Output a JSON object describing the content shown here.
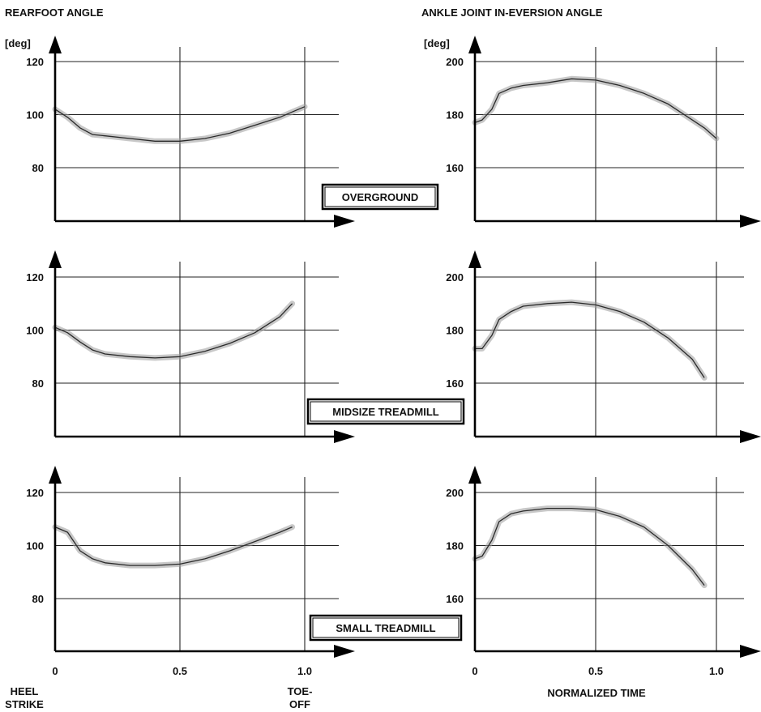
{
  "figure": {
    "left_title": "REARFOOT ANGLE",
    "right_title": "ANKLE JOINT IN-EVERSION ANGLE",
    "unit": "[deg]",
    "conditions": [
      "OVERGROUND",
      "MIDSIZE TREADMILL",
      "SMALL TREADMILL"
    ],
    "footer": {
      "heel_1": "HEEL",
      "heel_2": "STRIKE",
      "toe_1": "TOE-",
      "toe_2": "OFF",
      "normalized_time": "NORMALIZED TIME"
    }
  },
  "chart_data": [
    {
      "type": "line",
      "title": "REARFOOT ANGLE",
      "condition": "OVERGROUND",
      "ylabel": "[deg]",
      "ylim": [
        62,
        122
      ],
      "xlim": [
        0,
        1.05
      ],
      "y_ticks": [
        "120",
        "100",
        "80"
      ],
      "x_ticks": [],
      "grid": true,
      "x": [
        0,
        0.05,
        0.1,
        0.15,
        0.2,
        0.3,
        0.4,
        0.5,
        0.6,
        0.7,
        0.8,
        0.9,
        0.95,
        1.0
      ],
      "values": [
        102,
        99,
        95,
        92.5,
        92,
        91,
        90,
        90,
        91,
        93,
        96,
        99,
        101,
        103
      ]
    },
    {
      "type": "line",
      "title": "ANKLE JOINT IN-EVERSION ANGLE",
      "condition": "OVERGROUND",
      "ylabel": "[deg]",
      "ylim": [
        140,
        200
      ],
      "xlim": [
        0,
        1.1
      ],
      "y_ticks": [
        "200",
        "180",
        "160"
      ],
      "x_ticks": [],
      "grid": true,
      "x": [
        0,
        0.03,
        0.07,
        0.1,
        0.15,
        0.2,
        0.3,
        0.4,
        0.5,
        0.6,
        0.7,
        0.8,
        0.9,
        0.95,
        1.0
      ],
      "values": [
        177,
        178,
        182,
        188,
        190,
        191,
        192,
        193.5,
        193,
        191,
        188,
        184,
        178,
        175,
        171
      ]
    },
    {
      "type": "line",
      "title": "REARFOOT ANGLE",
      "condition": "MIDSIZE TREADMILL",
      "ylabel": "",
      "ylim": [
        62,
        122
      ],
      "xlim": [
        0,
        1.05
      ],
      "y_ticks": [
        "120",
        "100",
        "80"
      ],
      "x_ticks": [],
      "grid": true,
      "x": [
        0,
        0.05,
        0.1,
        0.15,
        0.2,
        0.3,
        0.4,
        0.5,
        0.6,
        0.7,
        0.8,
        0.9,
        0.95
      ],
      "values": [
        101,
        99,
        95.5,
        92.5,
        91,
        90,
        89.5,
        90,
        92,
        95,
        99,
        105,
        110
      ]
    },
    {
      "type": "line",
      "title": "ANKLE JOINT IN-EVERSION ANGLE",
      "condition": "MIDSIZE TREADMILL",
      "ylabel": "",
      "ylim": [
        140,
        200
      ],
      "xlim": [
        0,
        1.1
      ],
      "y_ticks": [
        "200",
        "180",
        "160"
      ],
      "x_ticks": [],
      "grid": true,
      "x": [
        0,
        0.03,
        0.07,
        0.1,
        0.15,
        0.2,
        0.3,
        0.4,
        0.5,
        0.6,
        0.7,
        0.8,
        0.9,
        0.95
      ],
      "values": [
        173,
        173,
        178,
        184,
        187,
        189,
        190,
        190.5,
        189.5,
        187,
        183,
        177,
        169,
        162
      ]
    },
    {
      "type": "line",
      "title": "REARFOOT ANGLE",
      "condition": "SMALL TREADMILL",
      "ylabel": "",
      "ylim": [
        62,
        122
      ],
      "xlim": [
        0,
        1.05
      ],
      "y_ticks": [
        "120",
        "100",
        "80"
      ],
      "x_ticks": [
        "0",
        "0.5",
        "1.0"
      ],
      "grid": true,
      "x": [
        0,
        0.05,
        0.1,
        0.15,
        0.2,
        0.3,
        0.4,
        0.5,
        0.6,
        0.7,
        0.8,
        0.9,
        0.95
      ],
      "values": [
        107,
        105,
        98,
        95,
        93.5,
        92.5,
        92.5,
        93,
        95,
        98,
        101.5,
        105,
        107
      ]
    },
    {
      "type": "line",
      "title": "ANKLE JOINT IN-EVERSION ANGLE",
      "condition": "SMALL TREADMILL",
      "ylabel": "",
      "ylim": [
        140,
        200
      ],
      "xlim": [
        0,
        1.1
      ],
      "y_ticks": [
        "200",
        "180",
        "160"
      ],
      "x_ticks": [
        "0",
        "0.5",
        "1.0"
      ],
      "grid": true,
      "x": [
        0,
        0.03,
        0.07,
        0.1,
        0.15,
        0.2,
        0.3,
        0.4,
        0.5,
        0.6,
        0.7,
        0.8,
        0.9,
        0.95
      ],
      "values": [
        175,
        176,
        182,
        189,
        192,
        193,
        194,
        194,
        193.5,
        191,
        187,
        180,
        171,
        165
      ]
    }
  ]
}
